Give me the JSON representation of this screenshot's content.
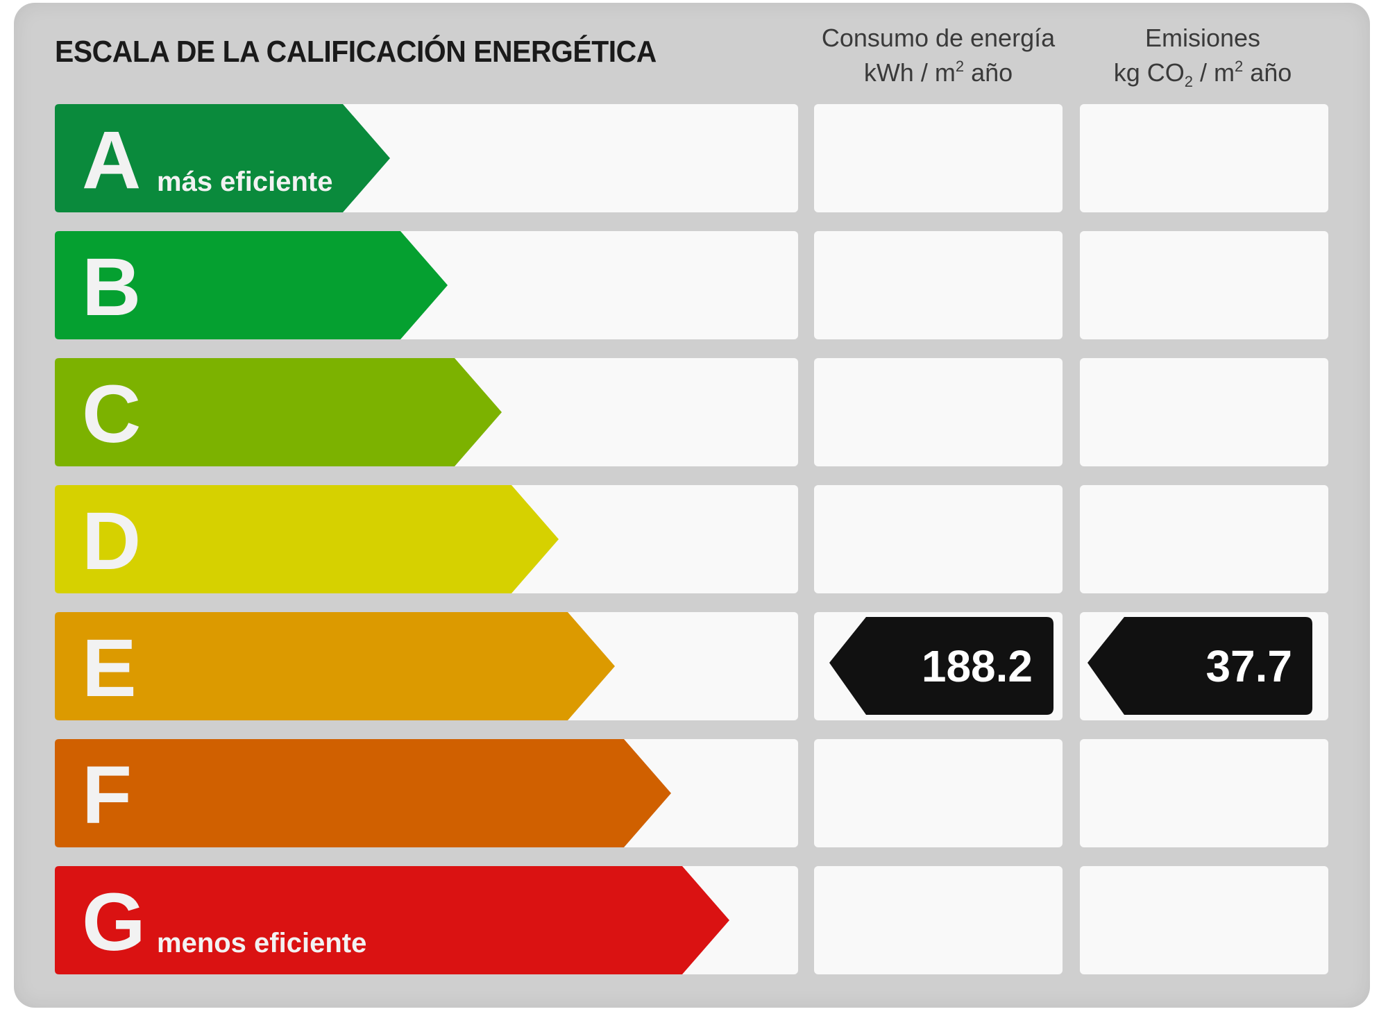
{
  "title": "ESCALA DE LA CALIFICACIÓN ENERGÉTICA",
  "columns": {
    "consumo": {
      "line1": "Consumo de energía",
      "unit_prefix": "kWh / m",
      "unit_sup": "2",
      "unit_suffix": " año"
    },
    "emisiones": {
      "line1": "Emisiones",
      "unit_prefix": "kg CO",
      "unit_sub": "2",
      "unit_mid": " / m",
      "unit_sup": "2",
      "unit_suffix": " año"
    }
  },
  "ratings": [
    {
      "letter": "A",
      "label": "más eficiente",
      "color": "#0a8a3c"
    },
    {
      "letter": "B",
      "label": "",
      "color": "#05a030"
    },
    {
      "letter": "C",
      "label": "",
      "color": "#7cb200"
    },
    {
      "letter": "D",
      "label": "",
      "color": "#d6d100"
    },
    {
      "letter": "E",
      "label": "",
      "color": "#dc9a00"
    },
    {
      "letter": "F",
      "label": "",
      "color": "#d06000"
    },
    {
      "letter": "G",
      "label": "menos eficiente",
      "color": "#da1212"
    }
  ],
  "current": {
    "rating": "E",
    "consumo_value": "188.2",
    "emisiones_value": "37.7",
    "marker_color": "#111111"
  }
}
